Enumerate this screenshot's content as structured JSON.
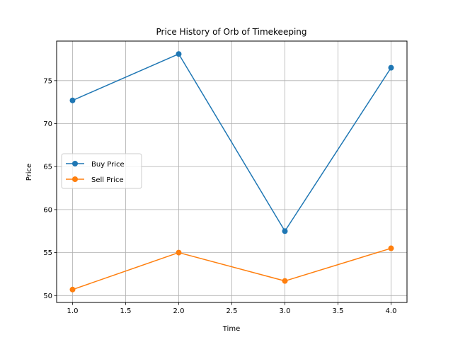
{
  "chart_data": {
    "type": "line",
    "title": "Price History of Orb of Timekeeping",
    "xlabel": "Time",
    "ylabel": "Price",
    "xlim": [
      0.85,
      4.15
    ],
    "ylim": [
      49.2,
      79.6
    ],
    "xticks": [
      1.0,
      1.5,
      2.0,
      2.5,
      3.0,
      3.5,
      4.0
    ],
    "xtick_labels": [
      "1.0",
      "1.5",
      "2.0",
      "2.5",
      "3.0",
      "3.5",
      "4.0"
    ],
    "yticks": [
      50,
      55,
      60,
      65,
      70,
      75
    ],
    "ytick_labels": [
      "50",
      "55",
      "60",
      "65",
      "70",
      "75"
    ],
    "grid": true,
    "legend_position": "center-left",
    "x": [
      1,
      2,
      3,
      4
    ],
    "series": [
      {
        "name": "Buy Price",
        "color": "#1f77b4",
        "values": [
          72.7,
          78.1,
          57.5,
          76.5
        ]
      },
      {
        "name": "Sell Price",
        "color": "#ff7f0e",
        "values": [
          50.7,
          55.0,
          51.7,
          55.5
        ]
      }
    ]
  }
}
